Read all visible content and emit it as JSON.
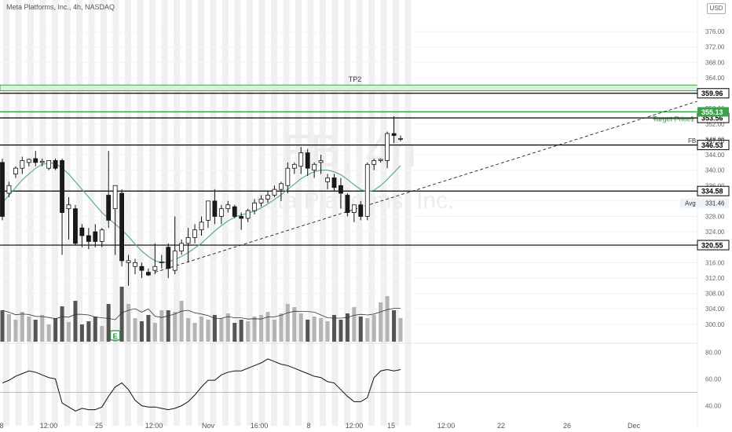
{
  "header": {
    "title": "Meta Platforms, Inc., 4h, NASDAQ",
    "currency_label": "USD"
  },
  "watermark": {
    "symbol": "FB, 4h",
    "company": "Meta Platforms, Inc."
  },
  "colors": {
    "up_candle": "#ffffff",
    "down_candle": "#1a1a1a",
    "volume_up": "#b4b4b4",
    "volume_down": "#555555",
    "ma_line": "#5fa8a8",
    "tp_green": "#3aa34a",
    "level_line": "#000000",
    "trend_line": "#222222",
    "rsi_line": "#111111",
    "session_shade": "#f0f0f0"
  },
  "chart_data": {
    "type": "candlestick",
    "symbol": "FB",
    "timeframe": "4h",
    "y_axis": {
      "range": [
        296.5,
        380.5
      ],
      "ticks": [
        300.0,
        304.0,
        308.0,
        312.0,
        316.0,
        320.0,
        324.0,
        328.0,
        332.0,
        336.0,
        340.0,
        344.0,
        348.0,
        352.0,
        356.0,
        360.0,
        364.0,
        368.0,
        372.0,
        376.0
      ],
      "tick_labels": [
        "300.00",
        "304.00",
        "308.00",
        "312.00",
        "316.00",
        "320.00",
        "324.00",
        "328.00",
        "332.00",
        "336.00",
        "340.00",
        "344.00",
        "348.00",
        "352.00",
        "356.00",
        "360.00",
        "364.00",
        "368.00",
        "372.00",
        "376.00"
      ]
    },
    "x_axis": {
      "tick_labels": [
        "8",
        "12:00",
        "25",
        "12:00",
        "Nov",
        "16:00",
        "8",
        "12:00",
        "15",
        "12:00",
        "22",
        "26",
        "Dec"
      ]
    },
    "candles": [
      {
        "o": 342.0,
        "h": 343.0,
        "l": 327.0,
        "c": 328.0
      },
      {
        "o": 334.0,
        "h": 337.0,
        "l": 333.0,
        "c": 336.0
      },
      {
        "o": 339.0,
        "h": 341.0,
        "l": 338.0,
        "c": 340.5
      },
      {
        "o": 340.5,
        "h": 343.5,
        "l": 339.0,
        "c": 342.5
      },
      {
        "o": 342.0,
        "h": 343.0,
        "l": 341.0,
        "c": 342.8
      },
      {
        "o": 343.0,
        "h": 345.0,
        "l": 341.0,
        "c": 342.0
      },
      {
        "o": 342.0,
        "h": 343.0,
        "l": 341.0,
        "c": 342.3
      },
      {
        "o": 340.5,
        "h": 342.5,
        "l": 340.0,
        "c": 342.5
      },
      {
        "o": 342.5,
        "h": 343.0,
        "l": 340.0,
        "c": 340.5
      },
      {
        "o": 342.5,
        "h": 343.0,
        "l": 318.0,
        "c": 329.0
      },
      {
        "o": 330.0,
        "h": 333.0,
        "l": 322.0,
        "c": 331.0
      },
      {
        "o": 330.0,
        "h": 331.0,
        "l": 320.5,
        "c": 321.0
      },
      {
        "o": 325.0,
        "h": 326.0,
        "l": 320.0,
        "c": 323.0
      },
      {
        "o": 323.0,
        "h": 325.0,
        "l": 319.5,
        "c": 321.5
      },
      {
        "o": 324.0,
        "h": 326.0,
        "l": 320.0,
        "c": 321.5
      },
      {
        "o": 321.5,
        "h": 325.0,
        "l": 320.0,
        "c": 324.5
      },
      {
        "o": 333.5,
        "h": 345.0,
        "l": 325.0,
        "c": 327.0
      },
      {
        "o": 330.0,
        "h": 336.0,
        "l": 318.0,
        "c": 336.0
      },
      {
        "o": 334.0,
        "h": 335.0,
        "l": 315.0,
        "c": 316.5
      },
      {
        "o": 316.0,
        "h": 318.0,
        "l": 310.0,
        "c": 316.5
      },
      {
        "o": 315.0,
        "h": 317.0,
        "l": 313.0,
        "c": 316.0
      },
      {
        "o": 315.0,
        "h": 316.0,
        "l": 312.0,
        "c": 314.0
      },
      {
        "o": 313.5,
        "h": 314.5,
        "l": 312.5,
        "c": 312.8
      },
      {
        "o": 314.0,
        "h": 321.0,
        "l": 313.0,
        "c": 315.0
      },
      {
        "o": 316.0,
        "h": 318.0,
        "l": 314.5,
        "c": 316.2
      },
      {
        "o": 320.0,
        "h": 321.0,
        "l": 312.0,
        "c": 314.5
      },
      {
        "o": 314.0,
        "h": 328.0,
        "l": 313.0,
        "c": 319.0
      },
      {
        "o": 319.0,
        "h": 322.0,
        "l": 318.0,
        "c": 321.0
      },
      {
        "o": 321.0,
        "h": 325.0,
        "l": 316.0,
        "c": 322.5
      },
      {
        "o": 322.5,
        "h": 326.0,
        "l": 321.0,
        "c": 324.5
      },
      {
        "o": 324.5,
        "h": 328.0,
        "l": 323.0,
        "c": 326.5
      },
      {
        "o": 327.0,
        "h": 332.0,
        "l": 325.0,
        "c": 332.0
      },
      {
        "o": 332.0,
        "h": 335.0,
        "l": 326.0,
        "c": 328.0
      },
      {
        "o": 328.0,
        "h": 331.0,
        "l": 326.0,
        "c": 330.0
      },
      {
        "o": 330.0,
        "h": 332.0,
        "l": 329.0,
        "c": 331.0
      },
      {
        "o": 330.5,
        "h": 331.0,
        "l": 327.5,
        "c": 328.0
      },
      {
        "o": 328.0,
        "h": 329.0,
        "l": 324.5,
        "c": 327.5
      },
      {
        "o": 327.5,
        "h": 330.0,
        "l": 326.5,
        "c": 329.5
      },
      {
        "o": 329.5,
        "h": 332.5,
        "l": 328.5,
        "c": 331.5
      },
      {
        "o": 331.5,
        "h": 333.5,
        "l": 330.5,
        "c": 332.5
      },
      {
        "o": 332.5,
        "h": 334.5,
        "l": 331.5,
        "c": 333.5
      },
      {
        "o": 333.5,
        "h": 336.0,
        "l": 333.0,
        "c": 335.0
      },
      {
        "o": 335.0,
        "h": 337.0,
        "l": 332.0,
        "c": 336.5
      },
      {
        "o": 336.0,
        "h": 342.0,
        "l": 334.0,
        "c": 340.5
      },
      {
        "o": 340.5,
        "h": 342.0,
        "l": 339.0,
        "c": 341.5
      },
      {
        "o": 341.0,
        "h": 346.0,
        "l": 339.0,
        "c": 344.5
      },
      {
        "o": 344.5,
        "h": 345.5,
        "l": 338.5,
        "c": 340.5
      },
      {
        "o": 340.0,
        "h": 342.0,
        "l": 338.0,
        "c": 341.5
      },
      {
        "o": 342.0,
        "h": 344.0,
        "l": 339.0,
        "c": 342.5
      },
      {
        "o": 337.0,
        "h": 339.0,
        "l": 335.0,
        "c": 338.0
      },
      {
        "o": 338.0,
        "h": 339.0,
        "l": 334.5,
        "c": 335.5
      },
      {
        "o": 336.0,
        "h": 338.0,
        "l": 330.0,
        "c": 334.0
      },
      {
        "o": 333.5,
        "h": 334.0,
        "l": 328.0,
        "c": 329.0
      },
      {
        "o": 329.0,
        "h": 331.0,
        "l": 326.5,
        "c": 331.0
      },
      {
        "o": 331.0,
        "h": 332.0,
        "l": 327.0,
        "c": 328.0
      },
      {
        "o": 328.0,
        "h": 342.0,
        "l": 327.0,
        "c": 341.5
      },
      {
        "o": 341.5,
        "h": 343.0,
        "l": 340.0,
        "c": 342.5
      },
      {
        "o": 342.5,
        "h": 343.0,
        "l": 342.0,
        "c": 342.8
      },
      {
        "o": 342.5,
        "h": 350.0,
        "l": 340.5,
        "c": 349.5
      },
      {
        "o": 349.5,
        "h": 354.0,
        "l": 347.0,
        "c": 349.0
      },
      {
        "o": 348.0,
        "h": 349.0,
        "l": 347.5,
        "c": 348.2
      }
    ],
    "volume": [
      40,
      35,
      28,
      38,
      32,
      28,
      34,
      22,
      30,
      45,
      25,
      52,
      22,
      26,
      32,
      20,
      48,
      14,
      70,
      48,
      30,
      26,
      34,
      24,
      40,
      40,
      38,
      52,
      30,
      24,
      32,
      28,
      34,
      30,
      36,
      24,
      28,
      26,
      32,
      34,
      38,
      28,
      36,
      48,
      44,
      36,
      28,
      32,
      30,
      26,
      34,
      28,
      36,
      44,
      32,
      30,
      34,
      50,
      58,
      40,
      30
    ],
    "moving_average": [
      331.5,
      333.5,
      335.5,
      337.5,
      339.0,
      340.5,
      341.5,
      341.8,
      341.8,
      340.5,
      339.0,
      337.0,
      335.0,
      333.0,
      331.0,
      329.0,
      327.5,
      326.0,
      324.5,
      322.8,
      320.8,
      319.0,
      317.6,
      316.5,
      316.0,
      316.2,
      316.8,
      317.6,
      318.6,
      319.8,
      321.0,
      322.6,
      324.2,
      325.6,
      326.8,
      327.8,
      328.4,
      328.8,
      329.4,
      330.2,
      331.2,
      332.4,
      333.6,
      335.0,
      336.4,
      337.8,
      338.8,
      339.6,
      340.0,
      340.0,
      339.6,
      338.8,
      337.6,
      336.2,
      335.0,
      334.4,
      334.8,
      336.0,
      337.6,
      339.4,
      341.2
    ],
    "rsi": {
      "range": [
        35,
        82
      ],
      "tick_labels": [
        "80.00",
        "60.00",
        "40.00"
      ],
      "ticks": [
        80,
        60,
        40
      ],
      "reference_level": 50,
      "values": [
        57,
        59,
        62,
        64,
        66,
        65,
        63,
        61,
        60,
        42,
        39,
        36,
        38,
        37,
        37,
        39,
        47,
        54,
        57,
        52,
        44,
        40,
        39,
        39,
        38,
        37,
        38,
        40,
        43,
        48,
        54,
        59,
        59,
        63,
        65,
        66,
        66,
        68,
        70,
        72,
        75,
        73,
        71,
        70,
        68,
        66,
        64,
        62,
        61,
        58,
        57,
        52,
        47,
        43,
        43,
        46,
        61,
        66,
        67,
        66,
        67
      ]
    },
    "levels": [
      {
        "label": "359.96",
        "value": 359.96,
        "kind": "black"
      },
      {
        "label": "353.56",
        "value": 353.56,
        "kind": "black"
      },
      {
        "label": "346.53",
        "value": 346.53,
        "kind": "black"
      },
      {
        "label": "334.58",
        "value": 334.58,
        "kind": "black"
      },
      {
        "label": "320.55",
        "value": 320.55,
        "kind": "black"
      }
    ],
    "target_zones": [
      {
        "label": "TP2",
        "from": 360.6,
        "to": 362.1
      },
      {
        "label": "Target Price1",
        "value": 355.13,
        "tag": "355.13"
      }
    ],
    "trendline": {
      "from": [
        23,
        313.5
      ],
      "to": [
        62,
        352.0
      ]
    },
    "price_tags": [
      {
        "name": "FB",
        "value": "347.70"
      },
      {
        "name": "Avg",
        "value": "331.46"
      }
    ],
    "earnings_marker": "E"
  }
}
